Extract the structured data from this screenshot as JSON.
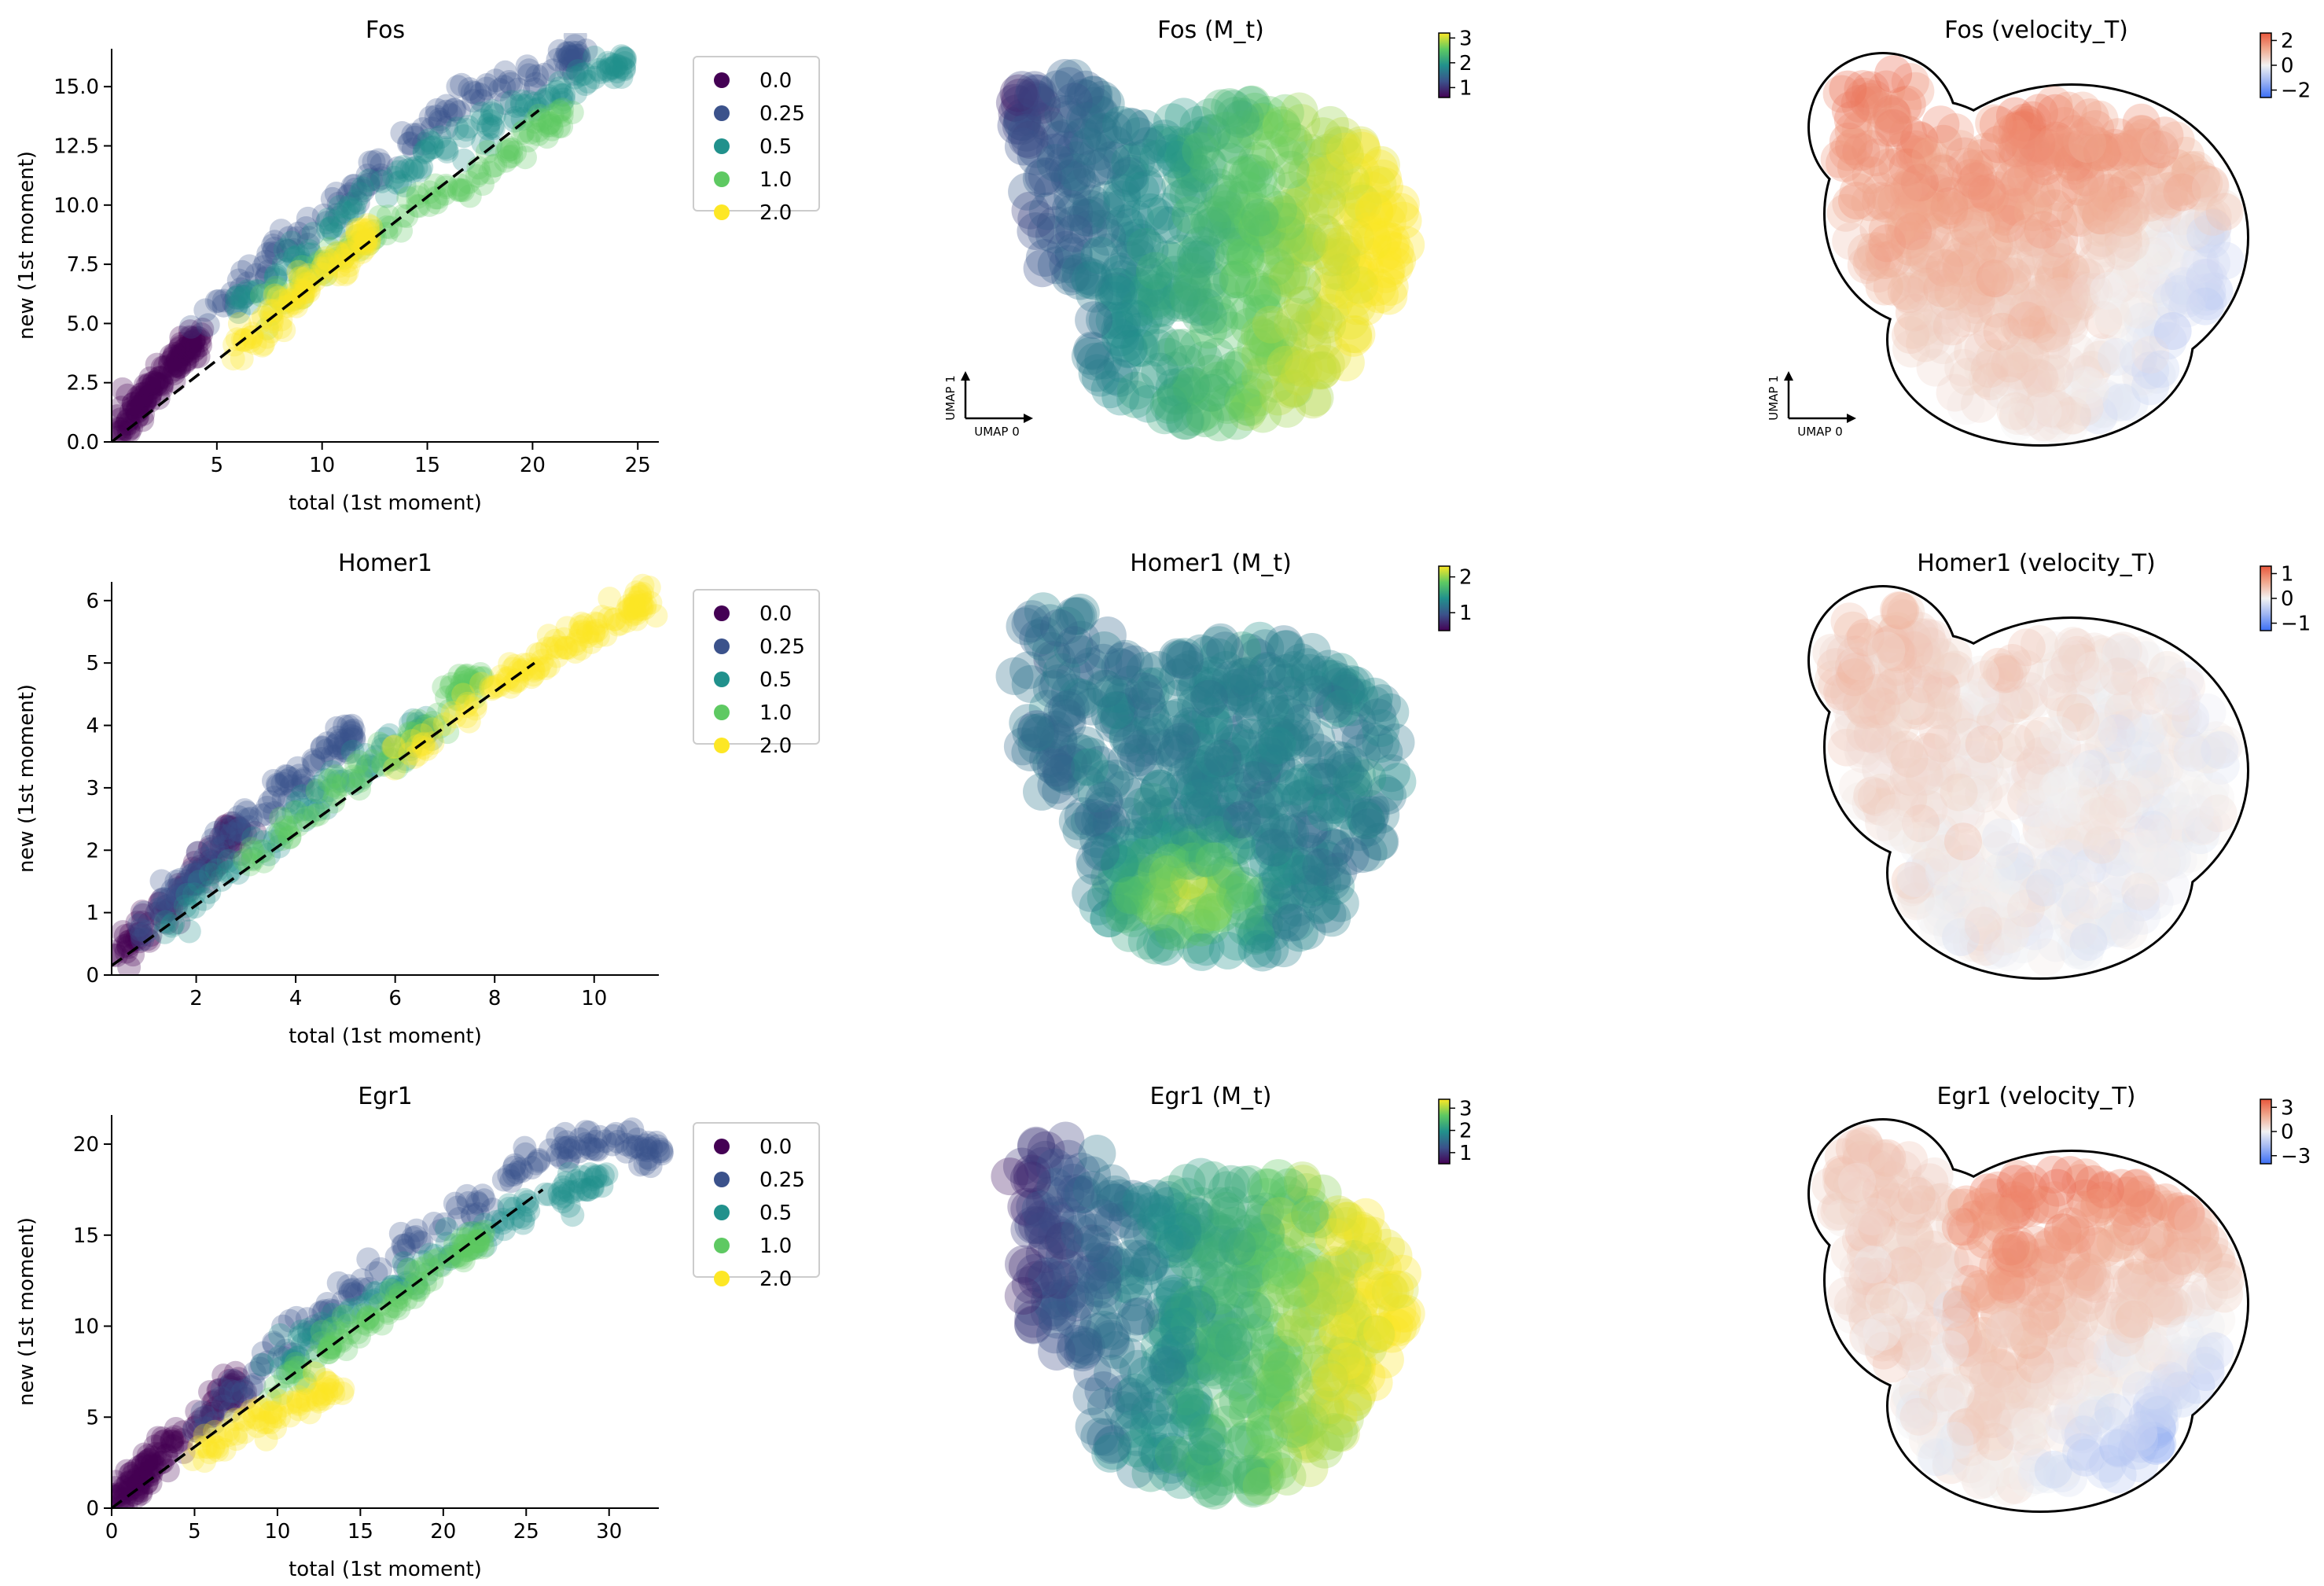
{
  "figure": {
    "rows": [
      {
        "gene": "Fos",
        "scatter_title": "Fos",
        "mt_title": "Fos (M_t)",
        "vel_title": "Fos (velocity_T)",
        "mt_colorbar_ticks": [
          1,
          2,
          3
        ],
        "mt_colorbar_range": [
          0.6,
          3.2
        ],
        "vel_colorbar_ticks": [
          -2,
          0,
          2
        ],
        "vel_colorbar_range": [
          -2.6,
          2.6
        ],
        "show_umap_axes": true,
        "umap_axis_labels": [
          "UMAP 0",
          "UMAP 1"
        ]
      },
      {
        "gene": "Homer1",
        "scatter_title": "Homer1",
        "mt_title": "Homer1 (M_t)",
        "vel_title": "Homer1 (velocity_T)",
        "mt_colorbar_ticks": [
          1
        ],
        "mt_colorbar_extra_tick": "2",
        "mt_colorbar_range": [
          0.5,
          2.3
        ],
        "vel_colorbar_ticks": [
          -1,
          0,
          1
        ],
        "vel_colorbar_range": [
          -1.3,
          1.3
        ],
        "show_umap_axes": false,
        "umap_axis_labels": []
      },
      {
        "gene": "Egr1",
        "scatter_title": "Egr1",
        "mt_title": "Egr1 (M_t)",
        "vel_title": "Egr1 (velocity_T)",
        "mt_colorbar_ticks": [
          1,
          2,
          3
        ],
        "mt_colorbar_range": [
          0.5,
          3.4
        ],
        "vel_colorbar_ticks": [
          -3,
          0,
          3
        ],
        "vel_colorbar_range": [
          -4,
          4
        ],
        "show_umap_axes": false,
        "umap_axis_labels": []
      }
    ],
    "legend": {
      "entries": [
        "0.0",
        "0.25",
        "0.5",
        "1.0",
        "2.0"
      ],
      "colors": [
        "#440154",
        "#3b528b",
        "#21918c",
        "#5ec962",
        "#fde725"
      ]
    },
    "colormaps": {
      "viridis": [
        "#440154",
        "#3b528b",
        "#21918c",
        "#5ec962",
        "#fde725"
      ],
      "diverging": [
        "#3b6ef5",
        "#9db4f2",
        "#f2f2f2",
        "#f0a98f",
        "#e8573c"
      ]
    }
  },
  "chart_data": [
    {
      "type": "scatter",
      "title": "Fos",
      "xlabel": "total (1st moment)",
      "ylabel": "new (1st moment)",
      "xlim": [
        0,
        26
      ],
      "ylim": [
        0,
        16.6
      ],
      "xticks": [
        5,
        10,
        15,
        20,
        25
      ],
      "yticks": [
        0.0,
        2.5,
        5.0,
        7.5,
        10.0,
        12.5,
        15.0
      ],
      "ytick_labels": [
        "0.0",
        "2.5",
        "5.0",
        "7.5",
        "10.0",
        "12.5",
        "15.0"
      ],
      "legend": "upper-right outside",
      "fit_line": {
        "x": [
          0,
          20.3
        ],
        "y": [
          0,
          14.0
        ]
      },
      "series": [
        {
          "name": "0.0",
          "x": [
            0.4,
            0.8,
            1.2,
            1.6,
            2.0,
            2.5,
            3.0,
            3.5,
            4.0
          ],
          "y": [
            0.5,
            1.0,
            1.4,
            1.9,
            2.3,
            2.8,
            3.3,
            3.8,
            4.3
          ]
        },
        {
          "name": "0.25",
          "x": [
            4.0,
            6.0,
            8.0,
            10.0,
            12.0,
            14.0,
            16.0,
            18.0,
            20.0,
            22.0
          ],
          "y": [
            4.8,
            6.5,
            8.2,
            9.5,
            11.0,
            12.5,
            13.8,
            14.8,
            15.6,
            16.2
          ]
        },
        {
          "name": "0.5",
          "x": [
            6.0,
            8.0,
            10.0,
            12.0,
            14.0,
            16.0,
            18.0,
            20.0,
            22.0,
            24.0
          ],
          "y": [
            5.8,
            7.2,
            8.8,
            10.3,
            11.5,
            12.8,
            13.5,
            14.3,
            15.2,
            15.9
          ]
        },
        {
          "name": "1.0",
          "x": [
            7.0,
            9.0,
            11.0,
            13.0,
            15.0,
            17.0,
            19.0,
            21.0
          ],
          "y": [
            5.4,
            6.8,
            8.0,
            9.1,
            10.2,
            11.0,
            12.2,
            13.6
          ]
        },
        {
          "name": "2.0",
          "x": [
            6.0,
            7.0,
            8.0,
            9.0,
            10.0,
            11.0,
            12.0
          ],
          "y": [
            3.9,
            4.5,
            5.5,
            6.3,
            7.2,
            8.0,
            8.6
          ]
        }
      ]
    },
    {
      "type": "scatter",
      "title": "Homer1",
      "xlabel": "total (1st moment)",
      "ylabel": "new (1st moment)",
      "xlim": [
        0.3,
        11.3
      ],
      "ylim": [
        0,
        6.3
      ],
      "xticks": [
        2,
        4,
        6,
        8,
        10
      ],
      "yticks": [
        0,
        1,
        2,
        3,
        4,
        5,
        6
      ],
      "ytick_labels": [
        "0",
        "1",
        "2",
        "3",
        "4",
        "5",
        "6"
      ],
      "legend": "upper-right outside",
      "fit_line": {
        "x": [
          0.3,
          8.8
        ],
        "y": [
          0.15,
          5.0
        ]
      },
      "series": [
        {
          "name": "0.0",
          "x": [
            0.4,
            0.8,
            1.2,
            1.6,
            2.0,
            2.4,
            2.8
          ],
          "y": [
            0.3,
            0.6,
            0.9,
            1.3,
            1.6,
            1.9,
            2.3
          ]
        },
        {
          "name": "0.25",
          "x": [
            0.8,
            1.5,
            2.0,
            2.6,
            3.2,
            3.8,
            4.4,
            5.0
          ],
          "y": [
            0.5,
            1.3,
            1.6,
            2.2,
            2.6,
            3.0,
            3.4,
            3.8
          ]
        },
        {
          "name": "0.5",
          "x": [
            1.5,
            2.5,
            3.5,
            4.5,
            5.5,
            6.5
          ],
          "y": [
            0.8,
            1.6,
            2.2,
            2.9,
            3.4,
            3.9
          ]
        },
        {
          "name": "1.0",
          "x": [
            3.0,
            4.0,
            5.0,
            6.0,
            7.0,
            7.5
          ],
          "y": [
            1.8,
            2.5,
            3.1,
            3.5,
            4.3,
            4.7
          ]
        },
        {
          "name": "2.0",
          "x": [
            6.0,
            7.0,
            8.0,
            8.5,
            9.0,
            9.5,
            10.0,
            10.5,
            11.0
          ],
          "y": [
            3.4,
            4.0,
            4.6,
            4.9,
            5.0,
            5.3,
            5.5,
            5.8,
            6.0
          ]
        }
      ]
    },
    {
      "type": "scatter",
      "title": "Egr1",
      "xlabel": "total (1st moment)",
      "ylabel": "new (1st moment)",
      "xlim": [
        0,
        33
      ],
      "ylim": [
        0,
        21.6
      ],
      "xticks": [
        0,
        5,
        10,
        15,
        20,
        25,
        30
      ],
      "yticks": [
        0,
        5,
        10,
        15,
        20
      ],
      "ytick_labels": [
        "0",
        "5",
        "10",
        "15",
        "20"
      ],
      "legend": "upper-right outside",
      "fit_line": {
        "x": [
          0,
          26.0
        ],
        "y": [
          0,
          17.5
        ]
      },
      "series": [
        {
          "name": "0.0",
          "x": [
            0.3,
            0.8,
            1.3,
            1.8,
            2.3,
            3.0,
            4.0,
            6.0,
            7.5
          ],
          "y": [
            0.4,
            0.9,
            1.3,
            1.9,
            2.3,
            3.1,
            4.0,
            5.6,
            6.8
          ]
        },
        {
          "name": "0.25",
          "x": [
            5.0,
            8.0,
            11.0,
            14.0,
            17.0,
            20.0,
            23.0,
            26.0,
            28.0,
            30.0,
            32.5
          ],
          "y": [
            4.5,
            7.0,
            9.5,
            11.5,
            13.5,
            15.8,
            17.5,
            19.5,
            20.0,
            20.5,
            19.5
          ]
        },
        {
          "name": "0.5",
          "x": [
            9.0,
            12.0,
            15.0,
            18.0,
            21.0,
            24.0,
            27.0,
            29.0
          ],
          "y": [
            7.2,
            9.3,
            11.0,
            12.8,
            14.4,
            16.0,
            17.2,
            17.8
          ]
        },
        {
          "name": "1.0",
          "x": [
            10.0,
            12.0,
            14.0,
            16.0,
            18.0,
            20.0,
            22.0
          ],
          "y": [
            6.5,
            8.0,
            9.5,
            10.5,
            12.0,
            13.5,
            14.5
          ]
        },
        {
          "name": "2.0",
          "x": [
            5.0,
            7.0,
            9.0,
            11.0,
            13.0
          ],
          "y": [
            3.0,
            4.0,
            5.0,
            5.5,
            6.5
          ]
        }
      ]
    },
    {
      "type": "scatter",
      "title": "Fos (M_t)",
      "colorbar_ticks": [
        1,
        2,
        3
      ],
      "colormap": "viridis",
      "description_of_gradient": "low values at upper-left lobe, high values at right lobe"
    },
    {
      "type": "scatter",
      "title": "Homer1 (M_t)",
      "colorbar_ticks": [
        1,
        2
      ],
      "colormap": "viridis"
    },
    {
      "type": "scatter",
      "title": "Egr1 (M_t)",
      "colorbar_ticks": [
        1,
        2,
        3
      ],
      "colormap": "viridis"
    },
    {
      "type": "scatter",
      "title": "Fos (velocity_T)",
      "colorbar_ticks": [
        -2,
        0,
        2
      ],
      "colormap": "coolwarm"
    },
    {
      "type": "scatter",
      "title": "Homer1 (velocity_T)",
      "colorbar_ticks": [
        -1,
        0,
        1
      ],
      "colormap": "coolwarm"
    },
    {
      "type": "scatter",
      "title": "Egr1 (velocity_T)",
      "colorbar_ticks": [
        -3,
        0,
        3
      ],
      "colormap": "coolwarm"
    }
  ]
}
